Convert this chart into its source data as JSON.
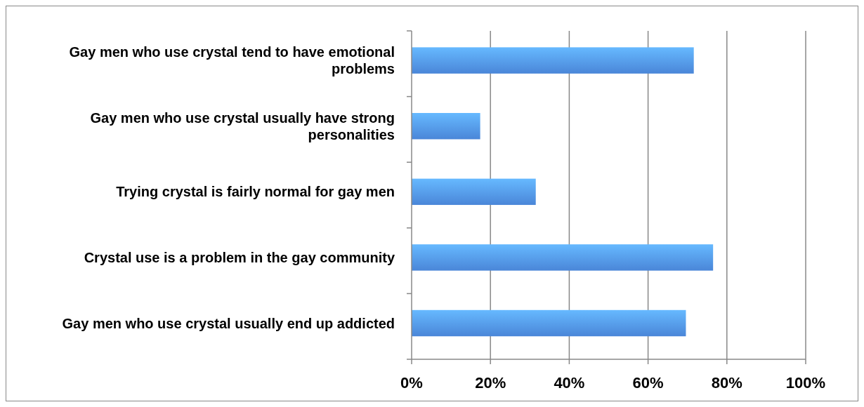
{
  "chart_data": {
    "type": "bar",
    "orientation": "horizontal",
    "categories": [
      "Gay men who use crystal tend to have emotional problems",
      "Gay men who use crystal usually have strong personalities",
      "Trying crystal is fairly normal for gay men",
      "Crystal use is a problem in the gay community",
      "Gay men who use crystal usually end up addicted"
    ],
    "values": [
      71.6,
      17.4,
      31.5,
      76.5,
      69.6
    ],
    "color": "#4a86d8",
    "xlim": [
      0,
      100
    ],
    "xticks": [
      {
        "value": 0,
        "label": "0%"
      },
      {
        "value": 20,
        "label": "20%"
      },
      {
        "value": 40,
        "label": "40%"
      },
      {
        "value": 60,
        "label": "60%"
      },
      {
        "value": 80,
        "label": "80%"
      },
      {
        "value": 100,
        "label": "100%"
      }
    ],
    "grid": "x"
  }
}
